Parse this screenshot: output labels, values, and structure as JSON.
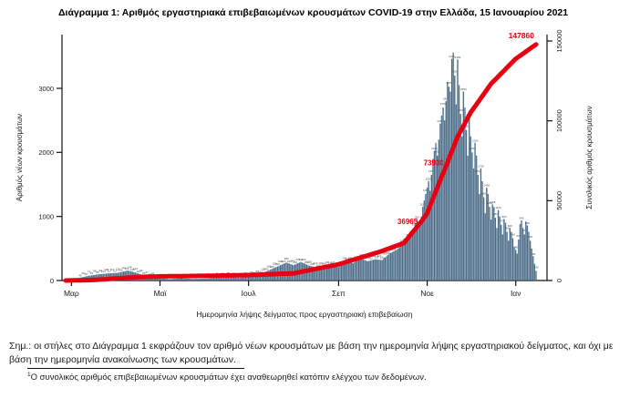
{
  "title": "Διάγραμμα 1: Αριθμός εργαστηριακά επιβεβαιωμένων κρουσμάτων COVID-19 στην Ελλάδα, 15 Ιανουαρίου 2021",
  "note": "Σημ.: οι στήλες στο Διάγραμμα 1 εκφράζουν τον αριθμό νέων κρουσμάτων με βάση την ημερομηνία λήψης εργαστηριακού δείγματος, και όχι με βάση την ημερομηνία ανακοίνωσης των κρουσμάτων.",
  "footnote_marker": "1",
  "footnote": "Ο συνολικός αριθμός επιβεβαιωμένων κρουσμάτων έχει αναθεωρηθεί κατόπιν ελέγχου των δεδομένων.",
  "chart_data": {
    "type": "bar",
    "title": "Διάγραμμα 1: Αριθμός εργαστηριακά επιβεβαιωμένων κρουσμάτων COVID-19 στην Ελλάδα, 15 Ιανουαρίου 2021",
    "xlabel": "Ημερομηνία λήψης δείγματος προς εργαστηριακή επιβεβαίωση",
    "ylabel_left": "Αριθμός νέων κρουσμάτων",
    "ylabel_right": "Συνολικός αριθμός κρουσμάτων",
    "x_tick_labels": [
      "Μαρ",
      "Μαϊ",
      "Ιουλ",
      "Σεπ",
      "Νοε",
      "Ιαν"
    ],
    "x_tick_days": [
      4,
      65,
      126,
      188,
      249,
      310
    ],
    "y_left_ticks": [
      0,
      1000,
      2000,
      3000
    ],
    "y_left_range": [
      0,
      3840
    ],
    "y_right_ticks": [
      0,
      50000,
      100000,
      150000
    ],
    "y_right_range": [
      0,
      150000
    ],
    "grid": false,
    "bar_color": "#54748f",
    "line_color": "#e60012",
    "series": [
      {
        "name": "daily-new-cases-bars",
        "type": "bar",
        "axis": "left",
        "keypoints": [
          [
            0,
            5
          ],
          [
            8,
            35
          ],
          [
            15,
            70
          ],
          [
            22,
            95
          ],
          [
            29,
            110
          ],
          [
            36,
            120
          ],
          [
            43,
            156
          ],
          [
            50,
            110
          ],
          [
            57,
            60
          ],
          [
            64,
            35
          ],
          [
            72,
            22
          ],
          [
            80,
            35
          ],
          [
            88,
            25
          ],
          [
            96,
            30
          ],
          [
            104,
            45
          ],
          [
            112,
            55
          ],
          [
            120,
            45
          ],
          [
            126,
            60
          ],
          [
            133,
            90
          ],
          [
            140,
            160
          ],
          [
            147,
            230
          ],
          [
            152,
            280
          ],
          [
            157,
            240
          ],
          [
            162,
            290
          ],
          [
            168,
            230
          ],
          [
            174,
            200
          ],
          [
            181,
            230
          ],
          [
            188,
            210
          ],
          [
            193,
            310
          ],
          [
            198,
            270
          ],
          [
            203,
            350
          ],
          [
            208,
            300
          ],
          [
            213,
            330
          ],
          [
            218,
            320
          ],
          [
            223,
            420
          ],
          [
            228,
            480
          ],
          [
            232,
            560
          ],
          [
            236,
            650
          ],
          [
            239,
            750
          ],
          [
            242,
            950
          ],
          [
            244,
            850
          ],
          [
            246,
            1150
          ],
          [
            248,
            1350
          ],
          [
            250,
            1550
          ],
          [
            251,
            1400
          ],
          [
            253,
            1900
          ],
          [
            255,
            2150
          ],
          [
            256,
            1950
          ],
          [
            258,
            2450
          ],
          [
            260,
            2700
          ],
          [
            261,
            2500
          ],
          [
            263,
            3100
          ],
          [
            265,
            2950
          ],
          [
            266,
            3460
          ],
          [
            267,
            3560
          ],
          [
            268,
            3200
          ],
          [
            269,
            2750
          ],
          [
            270,
            3450
          ],
          [
            271,
            3050
          ],
          [
            272,
            2600
          ],
          [
            273,
            2250
          ],
          [
            274,
            2950
          ],
          [
            275,
            2700
          ],
          [
            276,
            2350
          ],
          [
            277,
            1950
          ],
          [
            278,
            2550
          ],
          [
            279,
            2250
          ],
          [
            280,
            2000
          ],
          [
            281,
            1750
          ],
          [
            282,
            2150
          ],
          [
            283,
            1950
          ],
          [
            284,
            1650
          ],
          [
            285,
            1350
          ],
          [
            286,
            1750
          ],
          [
            287,
            1550
          ],
          [
            288,
            1300
          ],
          [
            289,
            1050
          ],
          [
            290,
            1450
          ],
          [
            291,
            1350
          ],
          [
            292,
            1150
          ],
          [
            293,
            950
          ],
          [
            294,
            1188
          ],
          [
            295,
            1147
          ],
          [
            296,
            980
          ],
          [
            297,
            820
          ],
          [
            298,
            1100
          ],
          [
            299,
            1000
          ],
          [
            300,
            870
          ],
          [
            301,
            720
          ],
          [
            302,
            960
          ],
          [
            303,
            900
          ],
          [
            304,
            760
          ],
          [
            305,
            620
          ],
          [
            306,
            820
          ],
          [
            307,
            760
          ],
          [
            308,
            660
          ],
          [
            309,
            520
          ],
          [
            310,
            480
          ],
          [
            311,
            420
          ],
          [
            312,
            640
          ],
          [
            313,
            880
          ],
          [
            314,
            940
          ],
          [
            315,
            820
          ],
          [
            316,
            720
          ],
          [
            317,
            920
          ],
          [
            318,
            860
          ],
          [
            319,
            760
          ],
          [
            320,
            620
          ],
          [
            321,
            500
          ],
          [
            322,
            380
          ],
          [
            323,
            260
          ],
          [
            324,
            150
          ]
        ]
      },
      {
        "name": "cumulative-cases-line",
        "type": "line",
        "axis": "right",
        "keypoints": [
          [
            0,
            3
          ],
          [
            19,
            331
          ],
          [
            35,
            1314
          ],
          [
            50,
            2192
          ],
          [
            65,
            2591
          ],
          [
            96,
            2937
          ],
          [
            126,
            3409
          ],
          [
            157,
            4477
          ],
          [
            188,
            10134
          ],
          [
            218,
            18475
          ],
          [
            233,
            23495
          ],
          [
            245,
            36965
          ],
          [
            249,
            42080
          ],
          [
            256,
            58187
          ],
          [
            263,
            73930
          ],
          [
            270,
            90121
          ],
          [
            279,
            105271
          ],
          [
            293,
            123185
          ],
          [
            310,
            138850
          ],
          [
            324,
            147860
          ]
        ]
      }
    ],
    "annotations": [
      {
        "label": "147860",
        "day": 324,
        "value": 147860,
        "style": "end"
      },
      {
        "label": "73930",
        "day": 263,
        "value": 73930,
        "style": "mid"
      },
      {
        "label": "36965",
        "day": 245,
        "value": 36965,
        "style": "mid"
      }
    ]
  }
}
